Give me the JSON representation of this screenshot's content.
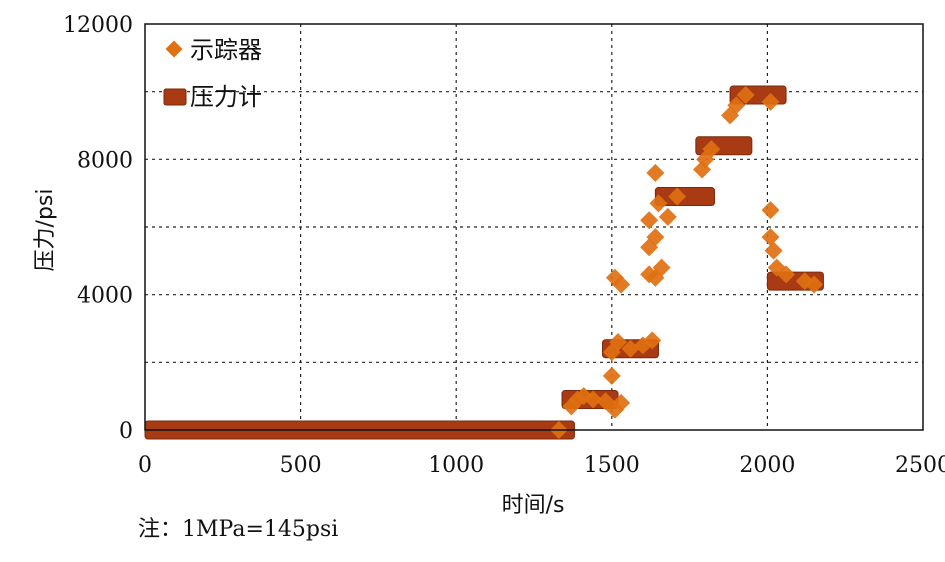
{
  "chart_data": {
    "type": "scatter",
    "title": "",
    "xlabel": "时间/s",
    "ylabel": "压力/psi",
    "xlim": [
      0,
      2500
    ],
    "ylim": [
      0,
      12000
    ],
    "x_ticks": [
      0,
      500,
      1000,
      1500,
      2000,
      2500
    ],
    "y_ticks": [
      0,
      4000,
      8000,
      12000
    ],
    "y_grid": [
      2000,
      4000,
      6000,
      8000,
      10000
    ],
    "grid": true,
    "legend_position": "top-left",
    "note": "注：1MPa=145psi",
    "series": [
      {
        "name": "示踪器",
        "marker": "diamond",
        "color": "#e07010",
        "points": [
          {
            "x": 1330,
            "y": 0
          },
          {
            "x": 1370,
            "y": 700
          },
          {
            "x": 1390,
            "y": 900
          },
          {
            "x": 1410,
            "y": 1000
          },
          {
            "x": 1440,
            "y": 900
          },
          {
            "x": 1480,
            "y": 850
          },
          {
            "x": 1510,
            "y": 600
          },
          {
            "x": 1530,
            "y": 800
          },
          {
            "x": 1500,
            "y": 1600
          },
          {
            "x": 1500,
            "y": 2300
          },
          {
            "x": 1520,
            "y": 2600
          },
          {
            "x": 1560,
            "y": 2400
          },
          {
            "x": 1600,
            "y": 2500
          },
          {
            "x": 1630,
            "y": 2650
          },
          {
            "x": 1510,
            "y": 4500
          },
          {
            "x": 1530,
            "y": 4300
          },
          {
            "x": 1620,
            "y": 4600
          },
          {
            "x": 1640,
            "y": 4500
          },
          {
            "x": 1660,
            "y": 4800
          },
          {
            "x": 1620,
            "y": 5400
          },
          {
            "x": 1640,
            "y": 5700
          },
          {
            "x": 1620,
            "y": 6200
          },
          {
            "x": 1650,
            "y": 6700
          },
          {
            "x": 1680,
            "y": 6300
          },
          {
            "x": 1640,
            "y": 7600
          },
          {
            "x": 1710,
            "y": 6900
          },
          {
            "x": 1790,
            "y": 7700
          },
          {
            "x": 1800,
            "y": 8000
          },
          {
            "x": 1820,
            "y": 8300
          },
          {
            "x": 1880,
            "y": 9300
          },
          {
            "x": 1900,
            "y": 9600
          },
          {
            "x": 1930,
            "y": 9900
          },
          {
            "x": 2010,
            "y": 9700
          },
          {
            "x": 2010,
            "y": 6500
          },
          {
            "x": 2010,
            "y": 5700
          },
          {
            "x": 2020,
            "y": 5300
          },
          {
            "x": 2030,
            "y": 4800
          },
          {
            "x": 2060,
            "y": 4600
          },
          {
            "x": 2120,
            "y": 4400
          },
          {
            "x": 2150,
            "y": 4300
          }
        ]
      },
      {
        "name": "压力计",
        "marker": "segment",
        "color": "#a83a14",
        "segments": [
          {
            "x0": 0,
            "x1": 1380,
            "y": 0
          },
          {
            "x0": 1340,
            "x1": 1520,
            "y": 900
          },
          {
            "x0": 1470,
            "x1": 1650,
            "y": 2400
          },
          {
            "x0": 1640,
            "x1": 1830,
            "y": 6900
          },
          {
            "x0": 1770,
            "x1": 1950,
            "y": 8400
          },
          {
            "x0": 1880,
            "x1": 2060,
            "y": 9900
          },
          {
            "x0": 2000,
            "x1": 2180,
            "y": 4400
          }
        ]
      }
    ]
  }
}
